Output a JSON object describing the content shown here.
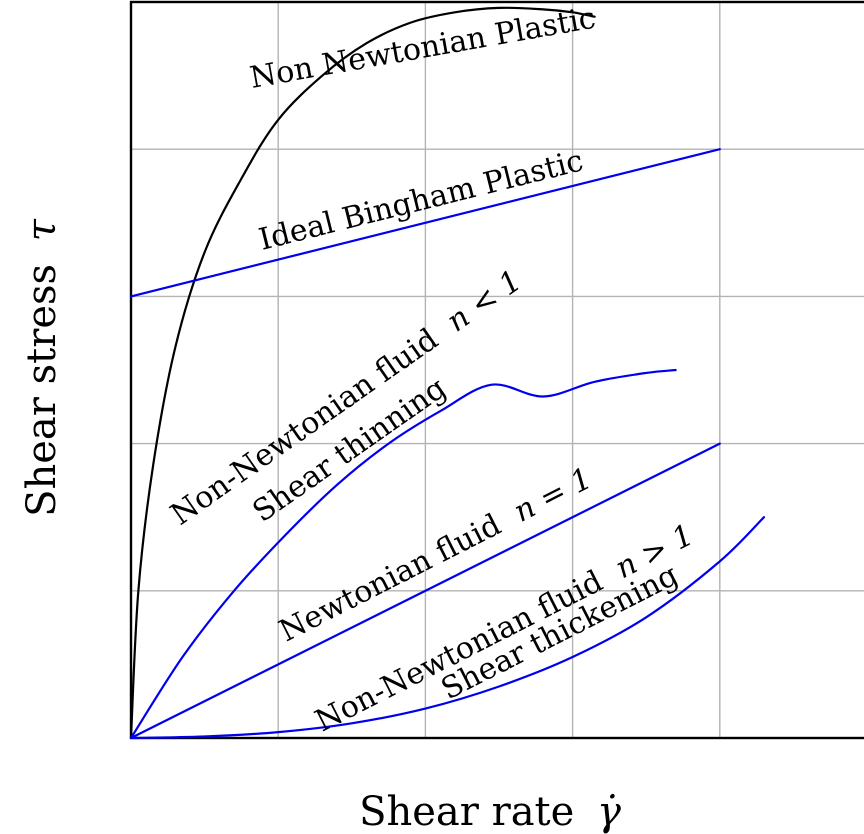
{
  "chart_data": {
    "type": "line",
    "xlabel": "Shear rate",
    "xlabel_symbol": "γ̇",
    "ylabel": "Shear stress",
    "ylabel_symbol": "τ",
    "xlim": [
      0,
      5
    ],
    "ylim": [
      0,
      5
    ],
    "grid": true,
    "tick_labels_shown": false,
    "colors": {
      "black": "#000000",
      "blue": "#0000ee",
      "grid": "#b3b3b3"
    },
    "series": [
      {
        "color": "black",
        "label": "Non Newtonian Plastic",
        "x": [
          0,
          0.05,
          0.15,
          0.3,
          0.5,
          0.75,
          1.0,
          1.3,
          1.6,
          1.9,
          2.2,
          2.5,
          2.8,
          3.0,
          3.15
        ],
        "y": [
          0,
          1.0,
          1.85,
          2.65,
          3.3,
          3.8,
          4.2,
          4.5,
          4.72,
          4.86,
          4.93,
          4.96,
          4.95,
          4.93,
          4.9
        ]
      },
      {
        "color": "blue",
        "label": "Ideal Bingham Plastic",
        "x": [
          0,
          4
        ],
        "y": [
          3,
          4
        ]
      },
      {
        "color": "blue",
        "label": "Non-Newtonian fluid n < 1",
        "sublabel": "Shear thinning",
        "x": [
          0,
          0.35,
          0.7,
          1.05,
          1.4,
          1.75,
          2.1,
          2.45,
          2.8,
          3.15,
          3.5,
          3.7
        ],
        "y": [
          0,
          0.55,
          1.0,
          1.38,
          1.72,
          2.0,
          2.22,
          2.4,
          2.32,
          2.42,
          2.48,
          2.5
        ]
      },
      {
        "color": "blue",
        "label": "Newtonian fluid n = 1",
        "x": [
          0,
          4
        ],
        "y": [
          0,
          2
        ]
      },
      {
        "color": "blue",
        "label": "Non-Newtonian fluid n > 1",
        "sublabel": "Shear thickening",
        "x": [
          0,
          0.5,
          1.0,
          1.5,
          2.0,
          2.5,
          3.0,
          3.5,
          4.0,
          4.3
        ],
        "y": [
          0,
          0.01,
          0.04,
          0.1,
          0.2,
          0.35,
          0.55,
          0.82,
          1.2,
          1.5
        ]
      }
    ],
    "annotations": {
      "plastic": "Non Newtonian Plastic",
      "bingham": "Ideal Bingham Plastic",
      "thinning_1": "Non-Newtonian fluid",
      "thinning_math": "n < 1",
      "thinning_2": "Shear thinning",
      "newtonian_1": "Newtonian fluid",
      "newtonian_math": "n = 1",
      "thickening_1": "Non-Newtonian fluid",
      "thickening_math": "n > 1",
      "thickening_2": "Shear thickening"
    }
  }
}
